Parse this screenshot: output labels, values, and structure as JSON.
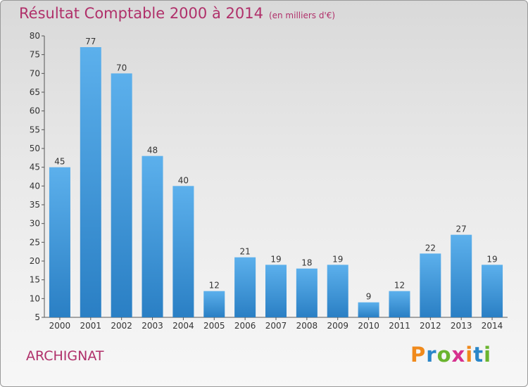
{
  "title": "Résultat Comptable 2000 à 2014",
  "subtitle": "(en milliers d'€)",
  "commune": "ARCHIGNAT",
  "logo": {
    "letters": [
      "P",
      "r",
      "o",
      "x",
      "i",
      "t",
      "i"
    ],
    "colors": [
      "#f08a1c",
      "#2a86c8",
      "#6ab42e",
      "#d6308e",
      "#f08a1c",
      "#2a86c8",
      "#6ab42e"
    ]
  },
  "chart_data": {
    "type": "bar",
    "categories": [
      "2000",
      "2001",
      "2002",
      "2003",
      "2004",
      "2005",
      "2006",
      "2007",
      "2008",
      "2009",
      "2010",
      "2011",
      "2012",
      "2013",
      "2014"
    ],
    "values": [
      45,
      77,
      70,
      48,
      40,
      12,
      21,
      19,
      18,
      19,
      9,
      12,
      22,
      27,
      19
    ],
    "ylim": [
      5,
      80
    ],
    "yticks": [
      5,
      10,
      15,
      20,
      25,
      30,
      35,
      40,
      45,
      50,
      55,
      60,
      65,
      70,
      75,
      80
    ],
    "bar_color": "#3b93d9",
    "grid": false,
    "legend": "none"
  }
}
